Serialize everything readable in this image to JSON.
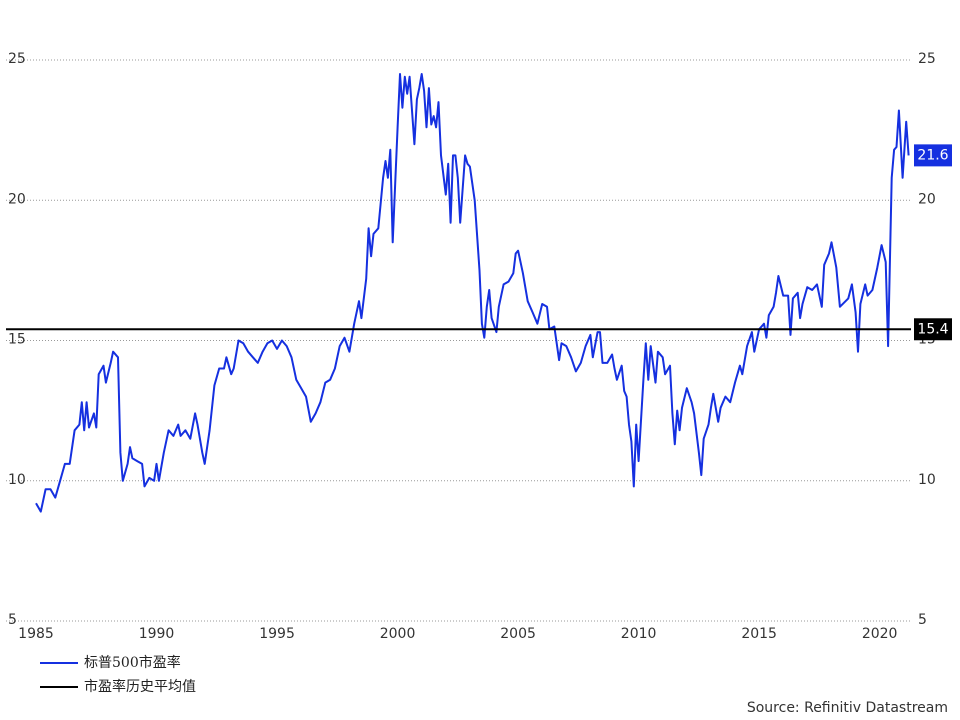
{
  "chart_data": {
    "type": "line",
    "x": [
      1985.0,
      1985.2,
      1985.4,
      1985.6,
      1985.8,
      1986.0,
      1986.2,
      1986.4,
      1986.6,
      1986.8,
      1986.9,
      1987.0,
      1987.1,
      1987.2,
      1987.4,
      1987.5,
      1987.6,
      1987.8,
      1987.9,
      1988.1,
      1988.2,
      1988.4,
      1988.5,
      1988.6,
      1988.8,
      1988.9,
      1989.0,
      1989.2,
      1989.4,
      1989.5,
      1989.7,
      1989.9,
      1990.0,
      1990.1,
      1990.3,
      1990.5,
      1990.7,
      1990.9,
      1991.0,
      1991.2,
      1991.4,
      1991.6,
      1991.7,
      1991.9,
      1992.0,
      1992.2,
      1992.4,
      1992.6,
      1992.8,
      1992.9,
      1993.1,
      1993.2,
      1993.4,
      1993.6,
      1993.8,
      1994.0,
      1994.2,
      1994.4,
      1994.6,
      1994.8,
      1995.0,
      1995.2,
      1995.4,
      1995.6,
      1995.8,
      1996.0,
      1996.2,
      1996.4,
      1996.6,
      1996.8,
      1997.0,
      1997.2,
      1997.4,
      1997.6,
      1997.8,
      1998.0,
      1998.2,
      1998.4,
      1998.5,
      1998.7,
      1998.8,
      1998.9,
      1999.0,
      1999.2,
      1999.4,
      1999.5,
      1999.6,
      1999.7,
      1999.8,
      1999.9,
      2000.0,
      2000.1,
      2000.2,
      2000.3,
      2000.4,
      2000.5,
      2000.7,
      2000.8,
      2000.9,
      2001.0,
      2001.1,
      2001.2,
      2001.3,
      2001.4,
      2001.5,
      2001.6,
      2001.7,
      2001.8,
      2002.0,
      2002.1,
      2002.2,
      2002.3,
      2002.4,
      2002.5,
      2002.6,
      2002.8,
      2002.9,
      2003.0,
      2003.2,
      2003.4,
      2003.5,
      2003.6,
      2003.7,
      2003.8,
      2003.9,
      2004.1,
      2004.2,
      2004.4,
      2004.6,
      2004.8,
      2004.9,
      2005.0,
      2005.2,
      2005.4,
      2005.6,
      2005.8,
      2006.0,
      2006.2,
      2006.3,
      2006.5,
      2006.7,
      2006.8,
      2007.0,
      2007.2,
      2007.4,
      2007.6,
      2007.8,
      2008.0,
      2008.1,
      2008.3,
      2008.4,
      2008.5,
      2008.7,
      2008.9,
      2009.0,
      2009.1,
      2009.3,
      2009.4,
      2009.5,
      2009.6,
      2009.7,
      2009.8,
      2009.9,
      2010.0,
      2010.2,
      2010.3,
      2010.4,
      2010.5,
      2010.7,
      2010.8,
      2011.0,
      2011.1,
      2011.3,
      2011.4,
      2011.5,
      2011.6,
      2011.7,
      2011.8,
      2012.0,
      2012.2,
      2012.3,
      2012.5,
      2012.6,
      2012.7,
      2012.9,
      2013.0,
      2013.1,
      2013.3,
      2013.4,
      2013.6,
      2013.8,
      2014.0,
      2014.2,
      2014.3,
      2014.5,
      2014.7,
      2014.8,
      2015.0,
      2015.2,
      2015.3,
      2015.4,
      2015.6,
      2015.7,
      2015.8,
      2016.0,
      2016.2,
      2016.3,
      2016.4,
      2016.6,
      2016.7,
      2016.8,
      2017.0,
      2017.2,
      2017.4,
      2017.6,
      2017.7,
      2017.9,
      2018.0,
      2018.2,
      2018.35,
      2018.7,
      2018.85,
      2019.0,
      2019.1,
      2019.2,
      2019.4,
      2019.5,
      2019.7,
      2019.9,
      2020.08,
      2020.25,
      2020.35,
      2020.5,
      2020.6,
      2020.7,
      2020.8,
      2020.95,
      2021.1,
      2021.2
    ],
    "series": [
      {
        "name": "标普500市盈率",
        "color": "#1530e0",
        "values": [
          9.2,
          8.9,
          9.7,
          9.7,
          9.4,
          10.0,
          10.6,
          10.6,
          11.8,
          12.0,
          12.8,
          11.8,
          12.8,
          11.9,
          12.4,
          11.9,
          13.8,
          14.1,
          13.5,
          14.2,
          14.6,
          14.4,
          11.0,
          10.0,
          10.6,
          11.2,
          10.8,
          10.7,
          10.6,
          9.8,
          10.1,
          10.0,
          10.6,
          10.0,
          11.0,
          11.8,
          11.6,
          12.0,
          11.6,
          11.8,
          11.5,
          12.4,
          12.0,
          11.0,
          10.6,
          11.8,
          13.4,
          14.0,
          14.0,
          14.4,
          13.8,
          14.0,
          15.0,
          14.9,
          14.6,
          14.4,
          14.2,
          14.6,
          14.9,
          15.0,
          14.7,
          15.0,
          14.8,
          14.4,
          13.6,
          13.3,
          13.0,
          12.1,
          12.4,
          12.8,
          13.5,
          13.6,
          14.0,
          14.8,
          15.1,
          14.6,
          15.6,
          16.4,
          15.8,
          17.2,
          19.0,
          18.0,
          18.8,
          19.0,
          20.8,
          21.4,
          20.8,
          21.8,
          18.5,
          20.6,
          22.6,
          24.5,
          23.3,
          24.4,
          23.8,
          24.4,
          22.0,
          23.6,
          24.0,
          24.5,
          23.9,
          22.6,
          24.0,
          22.7,
          23.0,
          22.6,
          23.5,
          21.6,
          20.2,
          21.3,
          19.2,
          21.6,
          21.6,
          20.8,
          19.2,
          21.6,
          21.3,
          21.2,
          20.0,
          17.5,
          15.6,
          15.1,
          16.2,
          16.8,
          15.8,
          15.3,
          16.2,
          17.0,
          17.1,
          17.4,
          18.1,
          18.2,
          17.4,
          16.4,
          16.0,
          15.6,
          16.3,
          16.2,
          15.4,
          15.5,
          14.3,
          14.9,
          14.8,
          14.4,
          13.9,
          14.2,
          14.8,
          15.2,
          14.4,
          15.3,
          15.3,
          14.2,
          14.2,
          14.5,
          14.0,
          13.6,
          14.1,
          13.2,
          13.0,
          12.0,
          11.4,
          9.8,
          12.0,
          10.7,
          13.6,
          14.9,
          13.6,
          14.8,
          13.5,
          14.6,
          14.4,
          13.8,
          14.1,
          12.4,
          11.3,
          12.5,
          11.8,
          12.6,
          13.3,
          12.8,
          12.4,
          11.0,
          10.2,
          11.5,
          12.0,
          12.6,
          13.1,
          12.1,
          12.6,
          13.0,
          12.8,
          13.5,
          14.1,
          13.8,
          14.8,
          15.3,
          14.6,
          15.4,
          15.6,
          15.1,
          15.9,
          16.2,
          16.7,
          17.3,
          16.6,
          16.6,
          15.2,
          16.5,
          16.7,
          15.8,
          16.3,
          16.9,
          16.8,
          17.0,
          16.2,
          17.7,
          18.1,
          18.5,
          17.6,
          16.2,
          16.5,
          17.0,
          16.0,
          14.6,
          16.3,
          17.0,
          16.6,
          16.8,
          17.6,
          18.4,
          17.8,
          14.8,
          20.8,
          21.8,
          21.9,
          23.2,
          20.8,
          22.8,
          21.6
        ]
      }
    ],
    "reference_line": {
      "name": "市盈率历史平均值",
      "value": 15.4,
      "color": "#000000"
    },
    "xlim": [
      1985,
      2021.3
    ],
    "xticks": [
      1985,
      1990,
      1995,
      2000,
      2005,
      2010,
      2015,
      2020
    ],
    "ylim": [
      5,
      25
    ],
    "yticks": [
      5,
      10,
      15,
      20,
      25
    ],
    "grid": true,
    "source": "Source: Refinitiv Datastream"
  }
}
